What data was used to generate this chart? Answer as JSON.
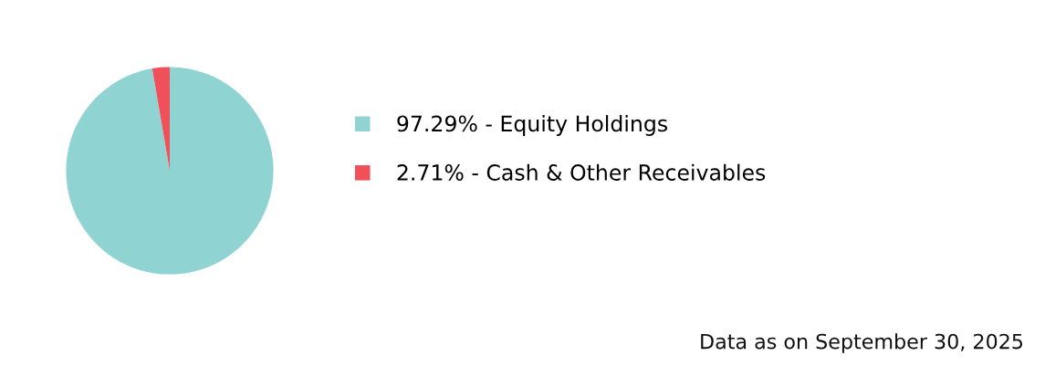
{
  "chart_data": {
    "type": "pie",
    "categories": [
      "97.29% - Equity Holdings",
      "2.71% - Cash & Other Receivables"
    ],
    "values": [
      97.29,
      2.71
    ],
    "colors": [
      "#8fd4d2",
      "#f0505a"
    ],
    "legend": "right",
    "annotations": [
      "Data as on September 30, 2025"
    ]
  }
}
